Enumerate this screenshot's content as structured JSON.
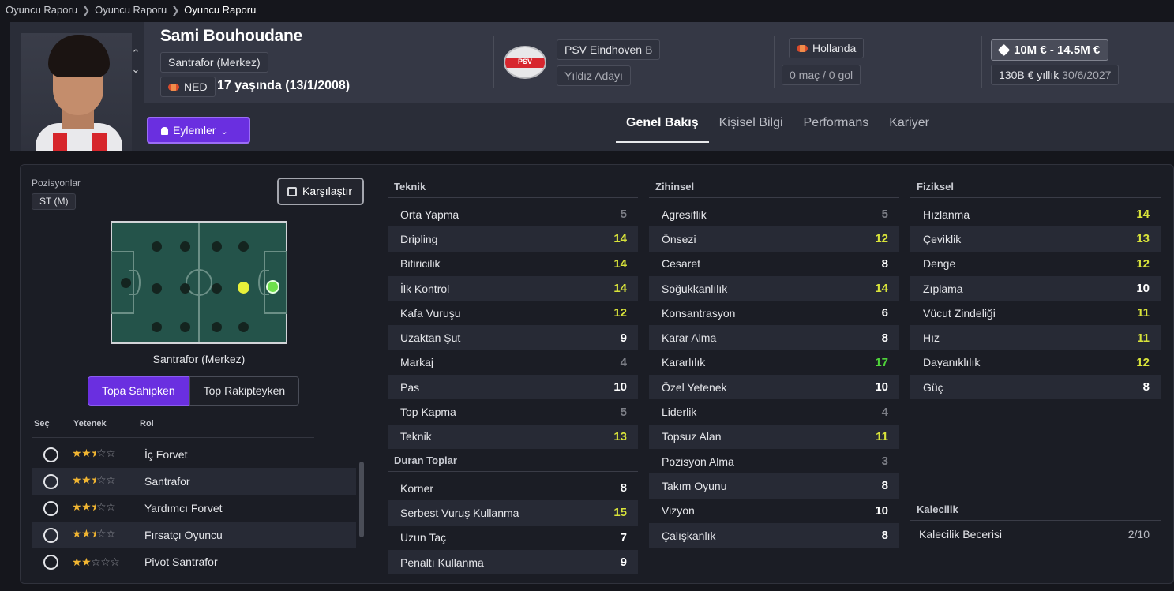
{
  "breadcrumb": [
    "Oyuncu Raporu",
    "Oyuncu Raporu",
    "Oyuncu Raporu"
  ],
  "player": {
    "name": "Sami Bouhoudane",
    "position": "Santrafor (Merkez)",
    "nationality_code": "NED",
    "age_text": "17 yaşında (13/1/2008)",
    "club": "PSV Eindhoven",
    "club_suffix": "B",
    "status": "Yıldız Adayı",
    "country": "Hollanda",
    "caps": "0 maç / 0 gol",
    "value": "10M € - 14.5M €",
    "wage": "130B € yıllık",
    "contract_end": "30/6/2027",
    "club_logo_text": "PSV"
  },
  "actions_label": "Eylemler",
  "tabs": [
    "Genel Bakış",
    "Kişisel Bilgi",
    "Performans",
    "Kariyer"
  ],
  "positions": {
    "title": "Pozisyonlar",
    "chip": "ST (M)",
    "compare_label": "Karşılaştır",
    "selected_name": "Santrafor (Merkez)",
    "toggle": [
      "Topa Sahipken",
      "Top Rakipteyken"
    ],
    "headers": [
      "Seç",
      "Yetenek",
      "Rol"
    ],
    "roles": [
      {
        "name": "İç Forvet",
        "stars": 2.5
      },
      {
        "name": "Santrafor",
        "stars": 2.5
      },
      {
        "name": "Yardımcı Forvet",
        "stars": 2.5
      },
      {
        "name": "Fırsatçı Oyuncu",
        "stars": 2.5
      },
      {
        "name": "Pivot Santrafor",
        "stars": 2
      }
    ]
  },
  "colors": {
    "c4": "#7c7e86",
    "c5": "#7c7e86",
    "c8": "#ffffff",
    "c12": "#d8e33a",
    "c17": "#4fd43a"
  },
  "attributes": {
    "teknik": {
      "title": "Teknik",
      "items": [
        {
          "label": "Orta Yapma",
          "value": 5
        },
        {
          "label": "Dripling",
          "value": 14
        },
        {
          "label": "Bitiricilik",
          "value": 14
        },
        {
          "label": "İlk Kontrol",
          "value": 14
        },
        {
          "label": "Kafa Vuruşu",
          "value": 12
        },
        {
          "label": "Uzaktan Şut",
          "value": 9
        },
        {
          "label": "Markaj",
          "value": 4
        },
        {
          "label": "Pas",
          "value": 10
        },
        {
          "label": "Top Kapma",
          "value": 5
        },
        {
          "label": "Teknik",
          "value": 13
        }
      ]
    },
    "duran": {
      "title": "Duran Toplar",
      "items": [
        {
          "label": "Korner",
          "value": 8
        },
        {
          "label": "Serbest Vuruş Kullanma",
          "value": 15
        },
        {
          "label": "Uzun Taç",
          "value": 7
        },
        {
          "label": "Penaltı Kullanma",
          "value": 9
        }
      ]
    },
    "zihinsel": {
      "title": "Zihinsel",
      "items": [
        {
          "label": "Agresiflik",
          "value": 5
        },
        {
          "label": "Önsezi",
          "value": 12
        },
        {
          "label": "Cesaret",
          "value": 8
        },
        {
          "label": "Soğukkanlılık",
          "value": 14
        },
        {
          "label": "Konsantrasyon",
          "value": 6
        },
        {
          "label": "Karar Alma",
          "value": 8
        },
        {
          "label": "Kararlılık",
          "value": 17
        },
        {
          "label": "Özel Yetenek",
          "value": 10
        },
        {
          "label": "Liderlik",
          "value": 4
        },
        {
          "label": "Topsuz Alan",
          "value": 11
        },
        {
          "label": "Pozisyon Alma",
          "value": 3
        },
        {
          "label": "Takım Oyunu",
          "value": 8
        },
        {
          "label": "Vizyon",
          "value": 10
        },
        {
          "label": "Çalışkanlık",
          "value": 8
        }
      ]
    },
    "fiziksel": {
      "title": "Fiziksel",
      "items": [
        {
          "label": "Hızlanma",
          "value": 14
        },
        {
          "label": "Çeviklik",
          "value": 13
        },
        {
          "label": "Denge",
          "value": 12
        },
        {
          "label": "Zıplama",
          "value": 10
        },
        {
          "label": "Vücut Zindeliği",
          "value": 11
        },
        {
          "label": "Hız",
          "value": 11
        },
        {
          "label": "Dayanıklılık",
          "value": 12
        },
        {
          "label": "Güç",
          "value": 8
        }
      ]
    },
    "kalecilik": {
      "title": "Kalecilik",
      "label": "Kalecilik Becerisi",
      "value": "2/10"
    }
  }
}
